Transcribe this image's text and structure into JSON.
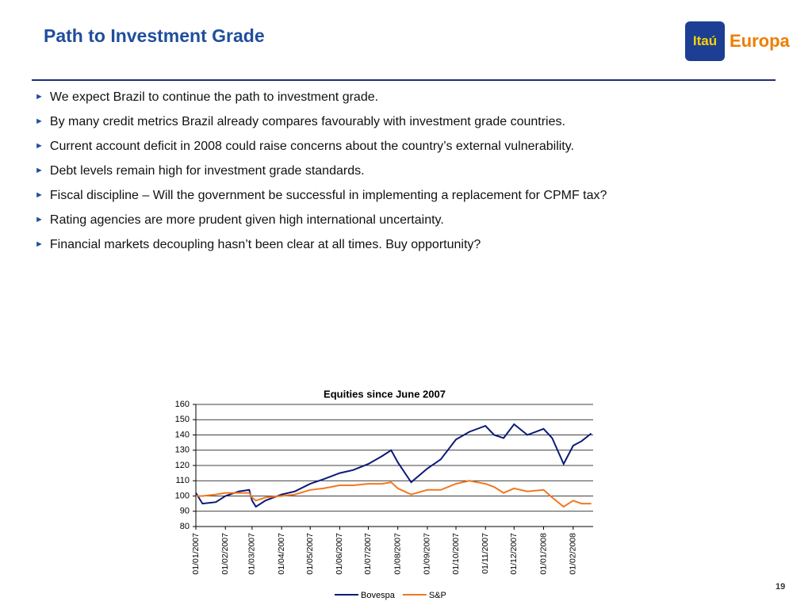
{
  "header": {
    "title": "Path to Investment Grade",
    "logo": [
      "Itaú",
      "Europa"
    ]
  },
  "bullets": [
    "We expect Brazil to continue the path to  investment grade.",
    "By many credit metrics Brazil already compares favourably with investment grade countries.",
    "Current account deficit in 2008 could raise concerns about the country’s external vulnerability.",
    "Debt levels remain high for investment grade standards.",
    "Fiscal discipline – Will the government be successful in implementing a replacement for CPMF tax?",
    "Rating agencies are more prudent given high international uncertainty.",
    "Financial markets decoupling hasn’t been clear at all times. Buy opportunity?"
  ],
  "page_number": "19",
  "chart_data": {
    "type": "line",
    "title": "Equities since June 2007",
    "x": [
      "01/01/2007",
      "08/01/2007",
      "22/01/2007",
      "01/02/2007",
      "15/02/2007",
      "26/02/2007",
      "01/03/2007",
      "05/03/2007",
      "15/03/2007",
      "01/04/2007",
      "15/04/2007",
      "01/05/2007",
      "15/05/2007",
      "01/06/2007",
      "15/06/2007",
      "01/07/2007",
      "15/07/2007",
      "25/07/2007",
      "01/08/2007",
      "15/08/2007",
      "01/09/2007",
      "15/09/2007",
      "01/10/2007",
      "15/10/2007",
      "01/11/2007",
      "10/11/2007",
      "20/11/2007",
      "01/12/2007",
      "15/12/2007",
      "01/01/2008",
      "10/01/2008",
      "22/01/2008",
      "01/02/2008",
      "10/02/2008",
      "20/02/2008"
    ],
    "series": [
      {
        "name": "Bovespa",
        "color": "#0a1a78",
        "values": [
          102,
          95,
          96,
          100,
          103,
          104,
          97,
          93,
          97,
          101,
          103,
          108,
          111,
          115,
          117,
          121,
          126,
          130,
          122,
          109,
          118,
          124,
          137,
          142,
          146,
          140,
          138,
          147,
          140,
          144,
          138,
          121,
          133,
          136,
          141
        ]
      },
      {
        "name": "S&P",
        "color": "#f07820",
        "values": [
          100,
          100,
          101,
          102,
          102,
          102,
          99,
          97,
          99,
          100,
          101,
          104,
          105,
          107,
          107,
          108,
          108,
          109,
          105,
          101,
          104,
          104,
          108,
          110,
          108,
          106,
          102,
          105,
          103,
          104,
          99,
          93,
          97,
          95,
          95
        ]
      }
    ],
    "xlim": [
      "01/01/2007",
      "22/02/2008"
    ],
    "xticks": [
      "01/01/2007",
      "01/02/2007",
      "01/03/2007",
      "01/04/2007",
      "01/05/2007",
      "01/06/2007",
      "01/07/2007",
      "01/08/2007",
      "01/09/2007",
      "01/10/2007",
      "01/11/2007",
      "01/12/2007",
      "01/01/2008",
      "01/02/2008"
    ],
    "ylim": [
      80,
      160
    ],
    "yticks": [
      80,
      90,
      100,
      110,
      120,
      130,
      140,
      150,
      160
    ],
    "grid": true,
    "legend": "bottom"
  }
}
